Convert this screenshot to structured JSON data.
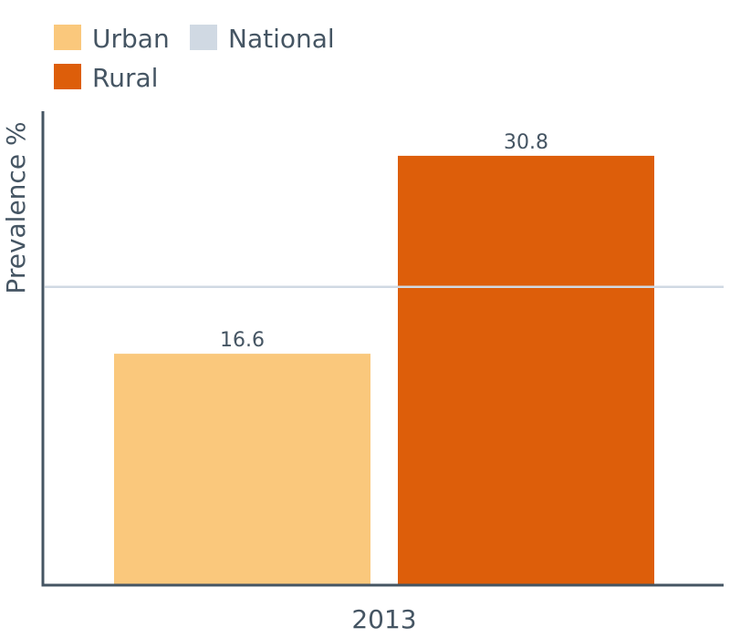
{
  "chart_data": {
    "type": "bar",
    "categories": [
      "2013"
    ],
    "series": [
      {
        "name": "Urban",
        "values": [
          16.6
        ],
        "color": "#FAC87C"
      },
      {
        "name": "Rural",
        "values": [
          30.8
        ],
        "color": "#DD5E0A"
      }
    ],
    "reference_lines": [
      {
        "name": "National",
        "value": 21.4,
        "color": "#D0D9E3"
      }
    ],
    "legend": [
      {
        "name": "Urban",
        "color": "#FAC87C"
      },
      {
        "name": "National",
        "color": "#D0D9E3"
      },
      {
        "name": "Rural",
        "color": "#DD5E0A"
      }
    ],
    "legend_placement": "top-left",
    "ylabel": "Prevalence %",
    "xlabel": "",
    "ylim": [
      0,
      34
    ],
    "grid": false,
    "show_value_labels": true
  }
}
